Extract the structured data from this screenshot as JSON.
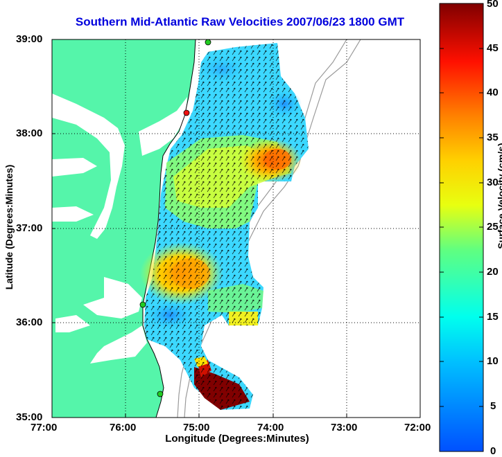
{
  "map": {
    "title": "Southern Mid-Atlantic Raw Velocities 2007/06/23 1800 GMT",
    "xlabel": "Longitude (Degrees:Minutes)",
    "ylabel": "Latitude (Degrees:Minutes)",
    "colorbar_label": "Surface Velocity (cm/s)",
    "x_ticks": [
      "77:00",
      "76:00",
      "75:00",
      "74:00",
      "73:00",
      "72:00"
    ],
    "y_ticks": [
      "39:00",
      "38:00",
      "37:00",
      "36:00",
      "35:00"
    ],
    "colorbar_ticks": [
      "50",
      "45",
      "40",
      "35",
      "30",
      "25",
      "20",
      "15",
      "10",
      "5",
      "0"
    ],
    "lon_range": [
      -77,
      -72
    ],
    "lat_range": [
      35,
      39
    ],
    "velocity_range_cms": [
      0,
      50
    ],
    "colors": {
      "land": "#55f5aa",
      "title": "#0000dd",
      "station": "#22cc22",
      "station_active": "#ee1111"
    }
  }
}
